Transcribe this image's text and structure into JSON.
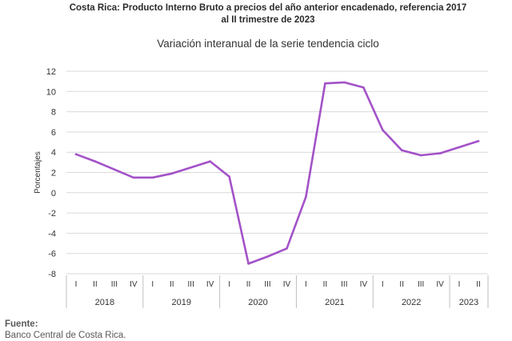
{
  "title": {
    "line1": "Costa Rica: Producto Interno Bruto a precios del año anterior encadenado, referencia 2017",
    "line2": "al II trimestre de 2023"
  },
  "chart_data": {
    "type": "line",
    "subtitle": "Variación interanual de la serie tendencia ciclo",
    "ylabel": "Porcentajes",
    "ylim": [
      -8,
      12
    ],
    "yticks": [
      12,
      10,
      8,
      6,
      4,
      2,
      0,
      -2,
      -4,
      -6,
      -8
    ],
    "grid": "horizontal",
    "quarters": [
      "I",
      "II",
      "III",
      "IV",
      "I",
      "II",
      "III",
      "IV",
      "I",
      "II",
      "III",
      "IV",
      "I",
      "II",
      "III",
      "IV",
      "I",
      "II",
      "III",
      "IV",
      "I",
      "II"
    ],
    "years": [
      {
        "label": "2018",
        "quarters": 4
      },
      {
        "label": "2019",
        "quarters": 4
      },
      {
        "label": "2020",
        "quarters": 4
      },
      {
        "label": "2021",
        "quarters": 4
      },
      {
        "label": "2022",
        "quarters": 4
      },
      {
        "label": "2023",
        "quarters": 2
      }
    ],
    "series": [
      {
        "values": [
          3.8,
          3.1,
          2.3,
          1.5,
          1.5,
          1.9,
          2.5,
          3.1,
          1.6,
          -7.0,
          -6.3,
          -5.5,
          -0.4,
          10.8,
          10.9,
          10.4,
          6.2,
          4.2,
          3.7,
          3.9,
          4.5,
          5.1
        ]
      }
    ],
    "color": "#a352c8"
  },
  "footer": {
    "source_label": "Fuente:",
    "source_text": "Banco Central de Costa Rica."
  }
}
